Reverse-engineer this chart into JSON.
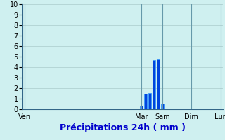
{
  "xlabel": "Précipitations 24h ( mm )",
  "ylim": [
    0,
    10
  ],
  "yticks": [
    0,
    1,
    2,
    3,
    4,
    5,
    6,
    7,
    8,
    9,
    10
  ],
  "background_color": "#cff0f0",
  "bar_color": "#0044dd",
  "bar_edge_color": "#3399ff",
  "grid_color": "#aacccc",
  "num_bars": 48,
  "bar_values": [
    0,
    0,
    0,
    0,
    0,
    0,
    0,
    0,
    0,
    0,
    0,
    0,
    0,
    0,
    0,
    0,
    0,
    0,
    0,
    0,
    0,
    0,
    0,
    0,
    0,
    0,
    0,
    0,
    0.35,
    1.5,
    1.52,
    4.65,
    4.72,
    0.52,
    0,
    0,
    0,
    0,
    0,
    0,
    0,
    0,
    0,
    0,
    0,
    0,
    0,
    0
  ],
  "xtick_positions": [
    0,
    28,
    33,
    40,
    47
  ],
  "xtick_labels": [
    "Ven",
    "Mar",
    "Sam",
    "Dim",
    "Lun"
  ],
  "vline_positions": [
    0,
    28,
    33,
    40,
    47
  ],
  "xlabel_fontsize": 9,
  "tick_fontsize": 7,
  "xlabel_color": "#0000cc"
}
